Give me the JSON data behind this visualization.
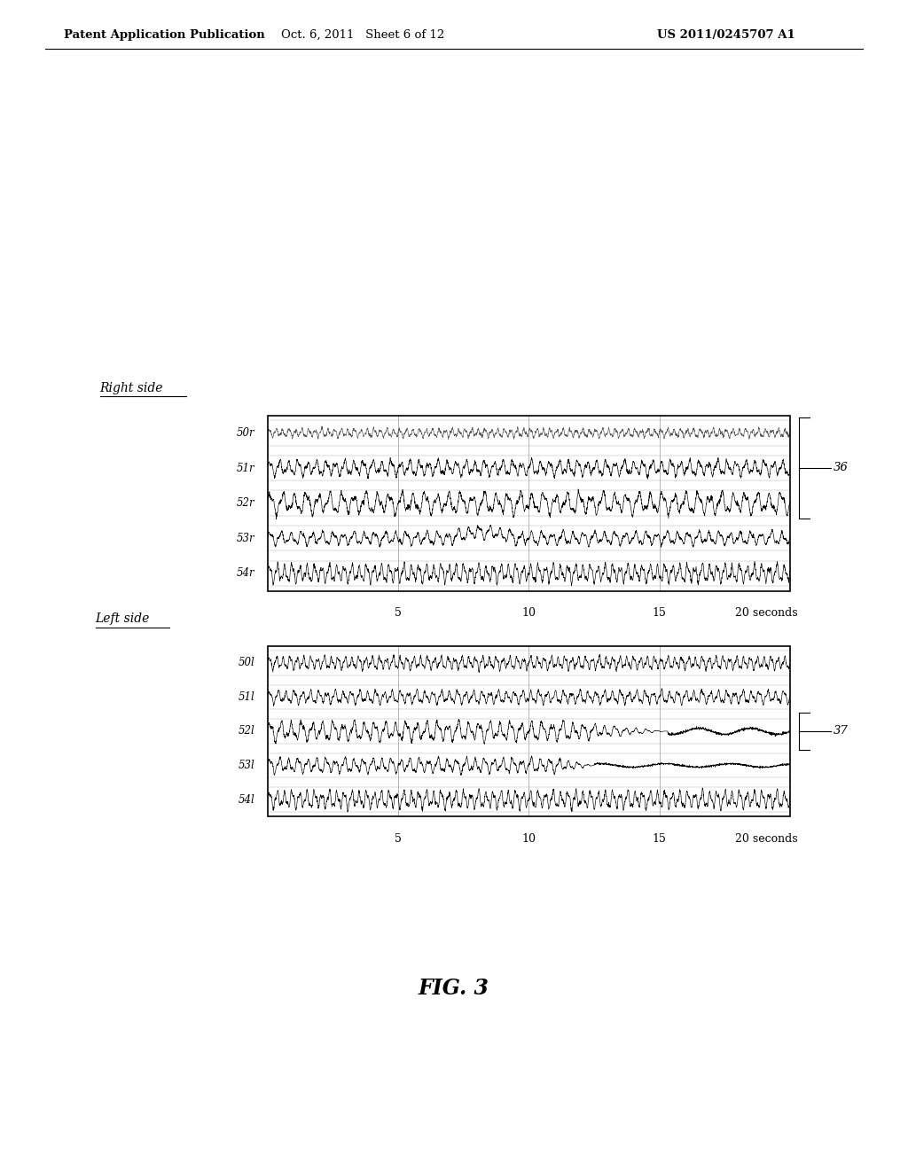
{
  "header_left": "Patent Application Publication",
  "header_mid": "Oct. 6, 2011   Sheet 6 of 12",
  "header_right": "US 2011/0245707 A1",
  "right_label": "Right side",
  "left_label": "Left side",
  "right_traces": [
    "50r",
    "51r",
    "52r",
    "53r",
    "54r"
  ],
  "left_traces": [
    "50l",
    "51l",
    "52l",
    "53l",
    "54l"
  ],
  "right_annotation": "36",
  "left_annotation": "37",
  "fig_label": "FIG. 3",
  "background_color": "#ffffff"
}
